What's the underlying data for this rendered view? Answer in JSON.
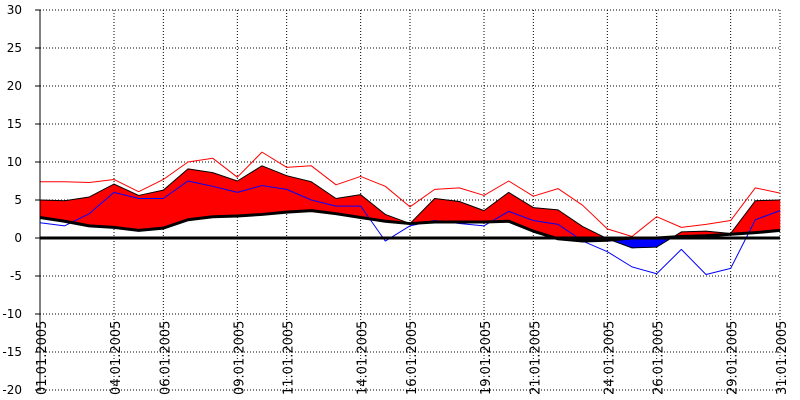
{
  "chart_data": {
    "type": "area",
    "title": "",
    "xlabel": "",
    "ylabel": "",
    "ylim": [
      -20,
      30
    ],
    "yticks": [
      30,
      25,
      20,
      15,
      10,
      5,
      0,
      -5,
      -10,
      -15,
      -20
    ],
    "grid": true,
    "x_tick_labels": [
      "01.01.2005",
      "04.01.2005",
      "06.01.2005",
      "09.01.2005",
      "11.01.2005",
      "14.01.2005",
      "16.01.2005",
      "19.01.2005",
      "21.01.2005",
      "24.01.2005",
      "26.01.2005",
      "29.01.2005",
      "31.01.2005"
    ],
    "x_tick_days": [
      1,
      4,
      6,
      9,
      11,
      14,
      16,
      19,
      21,
      24,
      26,
      29,
      31
    ],
    "x": [
      1,
      2,
      3,
      4,
      5,
      6,
      7,
      8,
      9,
      10,
      11,
      12,
      13,
      14,
      15,
      16,
      17,
      18,
      19,
      20,
      21,
      22,
      23,
      24,
      25,
      26,
      27,
      28,
      29,
      30,
      31
    ],
    "series": [
      {
        "key": "upper",
        "color": "#ff0000",
        "values": [
          7.4,
          7.4,
          7.3,
          7.7,
          6.1,
          7.7,
          10.0,
          10.5,
          8.0,
          11.3,
          9.3,
          9.5,
          7.0,
          8.1,
          6.8,
          4.1,
          6.4,
          6.6,
          5.6,
          7.5,
          5.5,
          6.5,
          4.3,
          1.2,
          0.2,
          2.8,
          1.4,
          1.8,
          2.3,
          6.6,
          5.9
        ]
      },
      {
        "key": "band_top",
        "color": "#000000",
        "values": [
          5.0,
          4.9,
          5.4,
          7.1,
          5.6,
          6.3,
          9.1,
          8.6,
          7.5,
          9.5,
          8.2,
          7.4,
          5.2,
          5.7,
          3.1,
          1.9,
          5.2,
          4.8,
          3.6,
          6.0,
          4.0,
          3.7,
          1.5,
          -0.1,
          -1.3,
          -1.2,
          0.8,
          0.9,
          0.6,
          4.9,
          5.0
        ]
      },
      {
        "key": "reference",
        "color": "#000000",
        "values": [
          2.7,
          2.2,
          1.6,
          1.4,
          1.0,
          1.3,
          2.4,
          2.8,
          2.9,
          3.1,
          3.4,
          3.6,
          3.2,
          2.7,
          2.2,
          1.9,
          2.1,
          2.1,
          2.1,
          2.2,
          0.9,
          -0.1,
          -0.4,
          -0.3,
          0.0,
          0.0,
          0.2,
          0.3,
          0.5,
          0.7,
          1.0
        ]
      },
      {
        "key": "lower",
        "color": "#0000ff",
        "values": [
          2.0,
          1.6,
          3.2,
          6.0,
          5.2,
          5.2,
          7.5,
          6.8,
          6.0,
          6.9,
          6.4,
          5.0,
          4.2,
          4.2,
          -0.4,
          1.6,
          2.3,
          1.9,
          1.6,
          3.5,
          2.3,
          1.8,
          -0.4,
          -1.8,
          -3.8,
          -4.7,
          -1.5,
          -4.8,
          -4.0,
          2.4,
          3.6
        ]
      }
    ],
    "zero_line": 0
  }
}
